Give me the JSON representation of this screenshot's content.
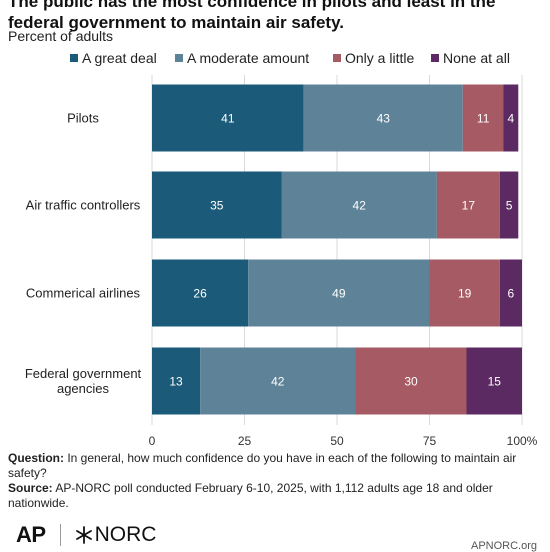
{
  "title": "The public has the most confidence in pilots and least in the federal government to maintain air safety.",
  "subtitle": "Percent of adults",
  "legend": [
    {
      "label": "A great deal",
      "color": "#1b5a78"
    },
    {
      "label": "A moderate amount",
      "color": "#5e8398"
    },
    {
      "label": "Only a little",
      "color": "#a65a63"
    },
    {
      "label": "None at all",
      "color": "#5c2a62"
    }
  ],
  "chart_data": {
    "type": "bar",
    "orientation": "horizontal",
    "stacked": true,
    "categories": [
      "Pilots",
      "Air traffic controllers",
      "Commerical airlines",
      "Federal government agencies"
    ],
    "series": [
      {
        "name": "A great deal",
        "values": [
          41,
          35,
          26,
          13
        ],
        "color": "#1b5a78"
      },
      {
        "name": "A moderate amount",
        "values": [
          43,
          42,
          49,
          42
        ],
        "color": "#5e8398"
      },
      {
        "name": "Only a little",
        "values": [
          11,
          17,
          19,
          30
        ],
        "color": "#a65a63"
      },
      {
        "name": "None at all",
        "values": [
          4,
          5,
          6,
          15
        ],
        "color": "#5c2a62"
      }
    ],
    "x_ticks": [
      "0",
      "25",
      "50",
      "75",
      "100%"
    ],
    "xlim": [
      0,
      100
    ],
    "grid": true,
    "legend_position": "top"
  },
  "notes": {
    "question_label": "Question:",
    "question_text": " In general, how much confidence do you have in each of the following to maintain air safety?",
    "source_label": "Source:",
    "source_text": " AP-NORC poll conducted February 6-10, 2025, with 1,112 adults age 18 and older nationwide."
  },
  "logos": {
    "ap": "AP",
    "norc": "NORC"
  },
  "site": "APNORC.org"
}
